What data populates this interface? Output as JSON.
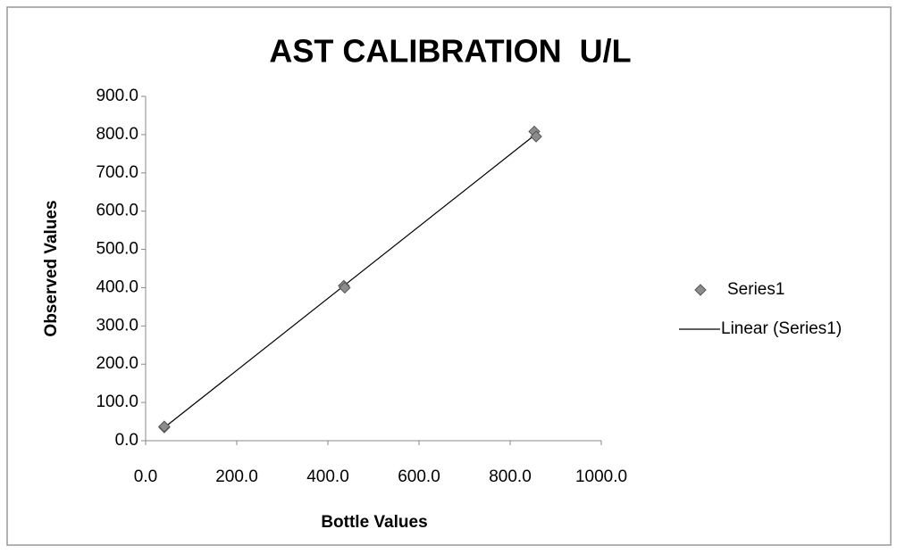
{
  "chart_data": {
    "type": "scatter",
    "title": "AST CALIBRATION  U/L",
    "x_label": "Bottle Values",
    "y_label": "Observed Values",
    "series": [
      {
        "name": "Series1",
        "color": "#8c8c8c",
        "x": [
          41,
          41,
          435,
          437,
          853,
          857
        ],
        "values": [
          35,
          37,
          405,
          400,
          808,
          795
        ]
      }
    ],
    "trendline": {
      "name": "Linear (Series1)",
      "color": "#000000"
    },
    "xlim": [
      0,
      1000
    ],
    "xticks": [
      {
        "value": 0,
        "label": "0.0"
      },
      {
        "value": 200,
        "label": "200.0"
      },
      {
        "value": 400,
        "label": "400.0"
      },
      {
        "value": 600,
        "label": "600.0"
      },
      {
        "value": 800,
        "label": "800.0"
      },
      {
        "value": 1000,
        "label": "1000.0"
      }
    ],
    "ylim": [
      0,
      900
    ],
    "yticks": [
      {
        "value": 0,
        "label": "0.0"
      },
      {
        "value": 100,
        "label": "100.0"
      },
      {
        "value": 200,
        "label": "200.0"
      },
      {
        "value": 300,
        "label": "300.0"
      },
      {
        "value": 400,
        "label": "400.0"
      },
      {
        "value": 500,
        "label": "500.0"
      },
      {
        "value": 600,
        "label": "600.0"
      },
      {
        "value": 700,
        "label": "700.0"
      },
      {
        "value": 800,
        "label": "800.0"
      },
      {
        "value": 900,
        "label": "900.0"
      }
    ],
    "grid": false,
    "legend": "right"
  }
}
